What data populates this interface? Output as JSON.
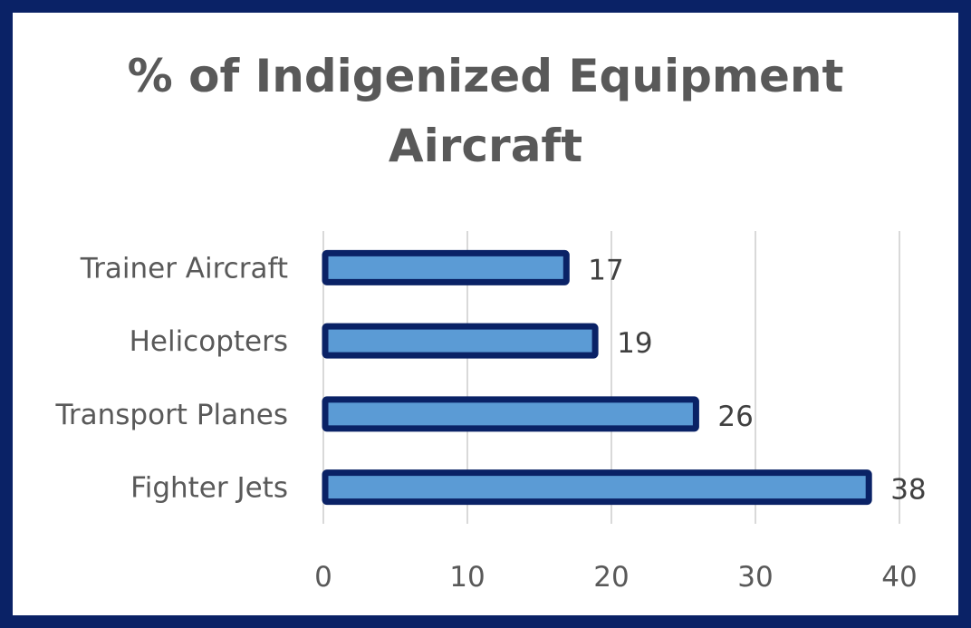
{
  "chart_data": {
    "type": "bar",
    "orientation": "horizontal",
    "title_lines": [
      "% of Indigenized Equipment",
      "Aircraft"
    ],
    "categories": [
      "Trainer Aircraft",
      "Helicopters",
      "Transport Planes",
      "Fighter Jets"
    ],
    "values": [
      17,
      19,
      26,
      38
    ],
    "xlim": [
      0,
      40
    ],
    "xticks": [
      "0",
      "10",
      "20",
      "30",
      "40"
    ],
    "grid": true,
    "legend": "none",
    "colors": {
      "bar_fill": "#5b9bd5",
      "bar_border": "#0a2266",
      "frame": "#0a2266"
    }
  }
}
